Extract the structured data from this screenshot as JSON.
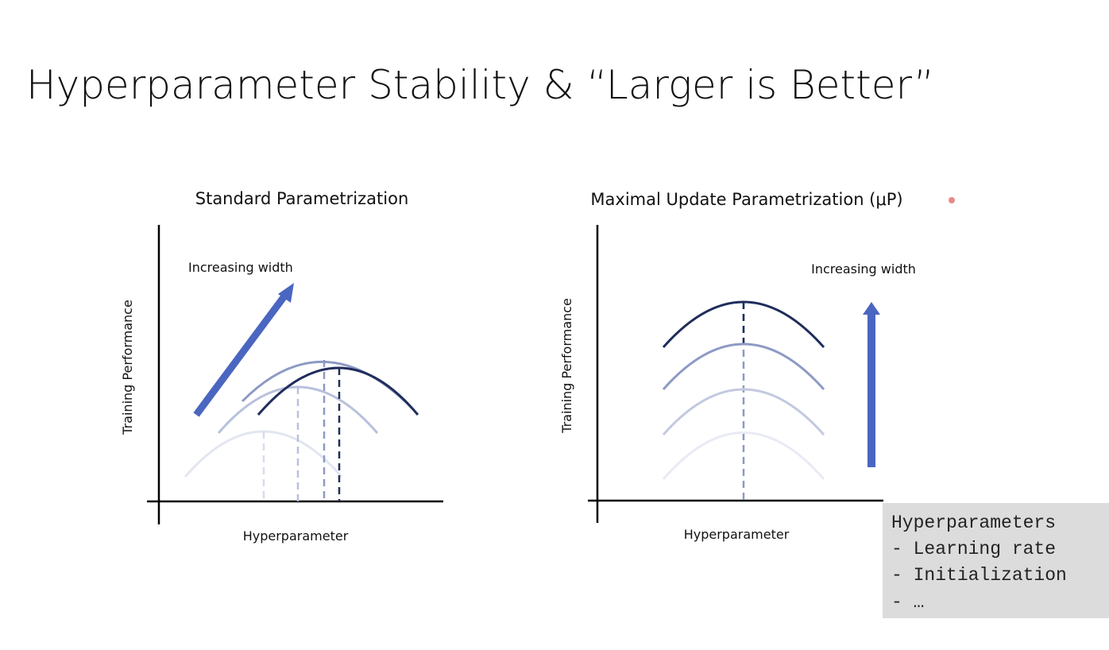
{
  "header": {
    "title": "Hyperparameter Stability & “Larger is Better”"
  },
  "panels": [
    {
      "title": "Standard Parametrization",
      "annotation": "Increasing width",
      "y_label": "Training Performance",
      "x_label": "Hyperparameter"
    },
    {
      "title": "Maximal Update Parametrization (μP)",
      "annotation": "Increasing width",
      "y_label": "Training Performance",
      "x_label": "Hyperparameter"
    }
  ],
  "note": {
    "lines": [
      "Hyperparameters",
      "- Learning rate",
      "- Initialization",
      "- …"
    ]
  }
}
